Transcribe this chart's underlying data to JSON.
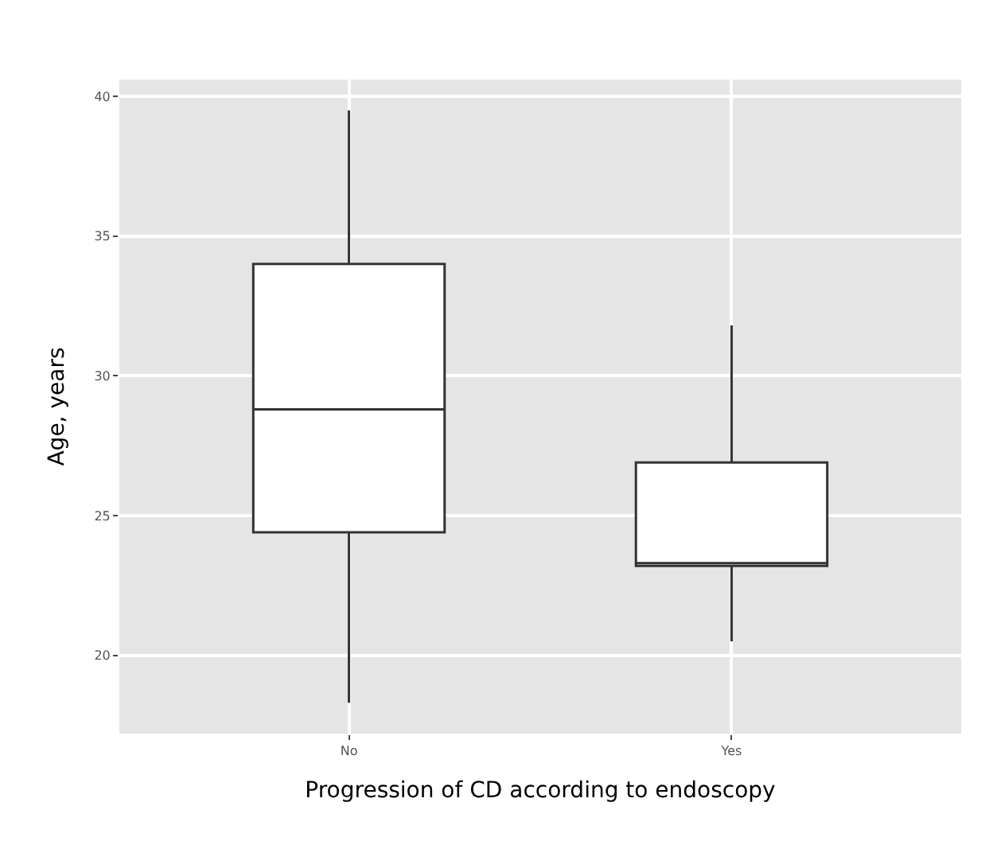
{
  "chart_data": {
    "type": "box",
    "xlabel": "Progression of CD according to endoscopy",
    "ylabel": "Age, years",
    "categories": [
      "No",
      "Yes"
    ],
    "boxes": [
      {
        "low": 18.3,
        "q1": 24.4,
        "median": 28.8,
        "q3": 34.0,
        "high": 39.5
      },
      {
        "low": 20.5,
        "q1": 23.2,
        "median": 23.3,
        "q3": 26.9,
        "high": 31.8
      }
    ],
    "color": "#333333",
    "ylim": [
      17.2,
      40.6
    ],
    "yticks": [
      20,
      25,
      30,
      35,
      40
    ],
    "grid": true,
    "legend": false
  }
}
